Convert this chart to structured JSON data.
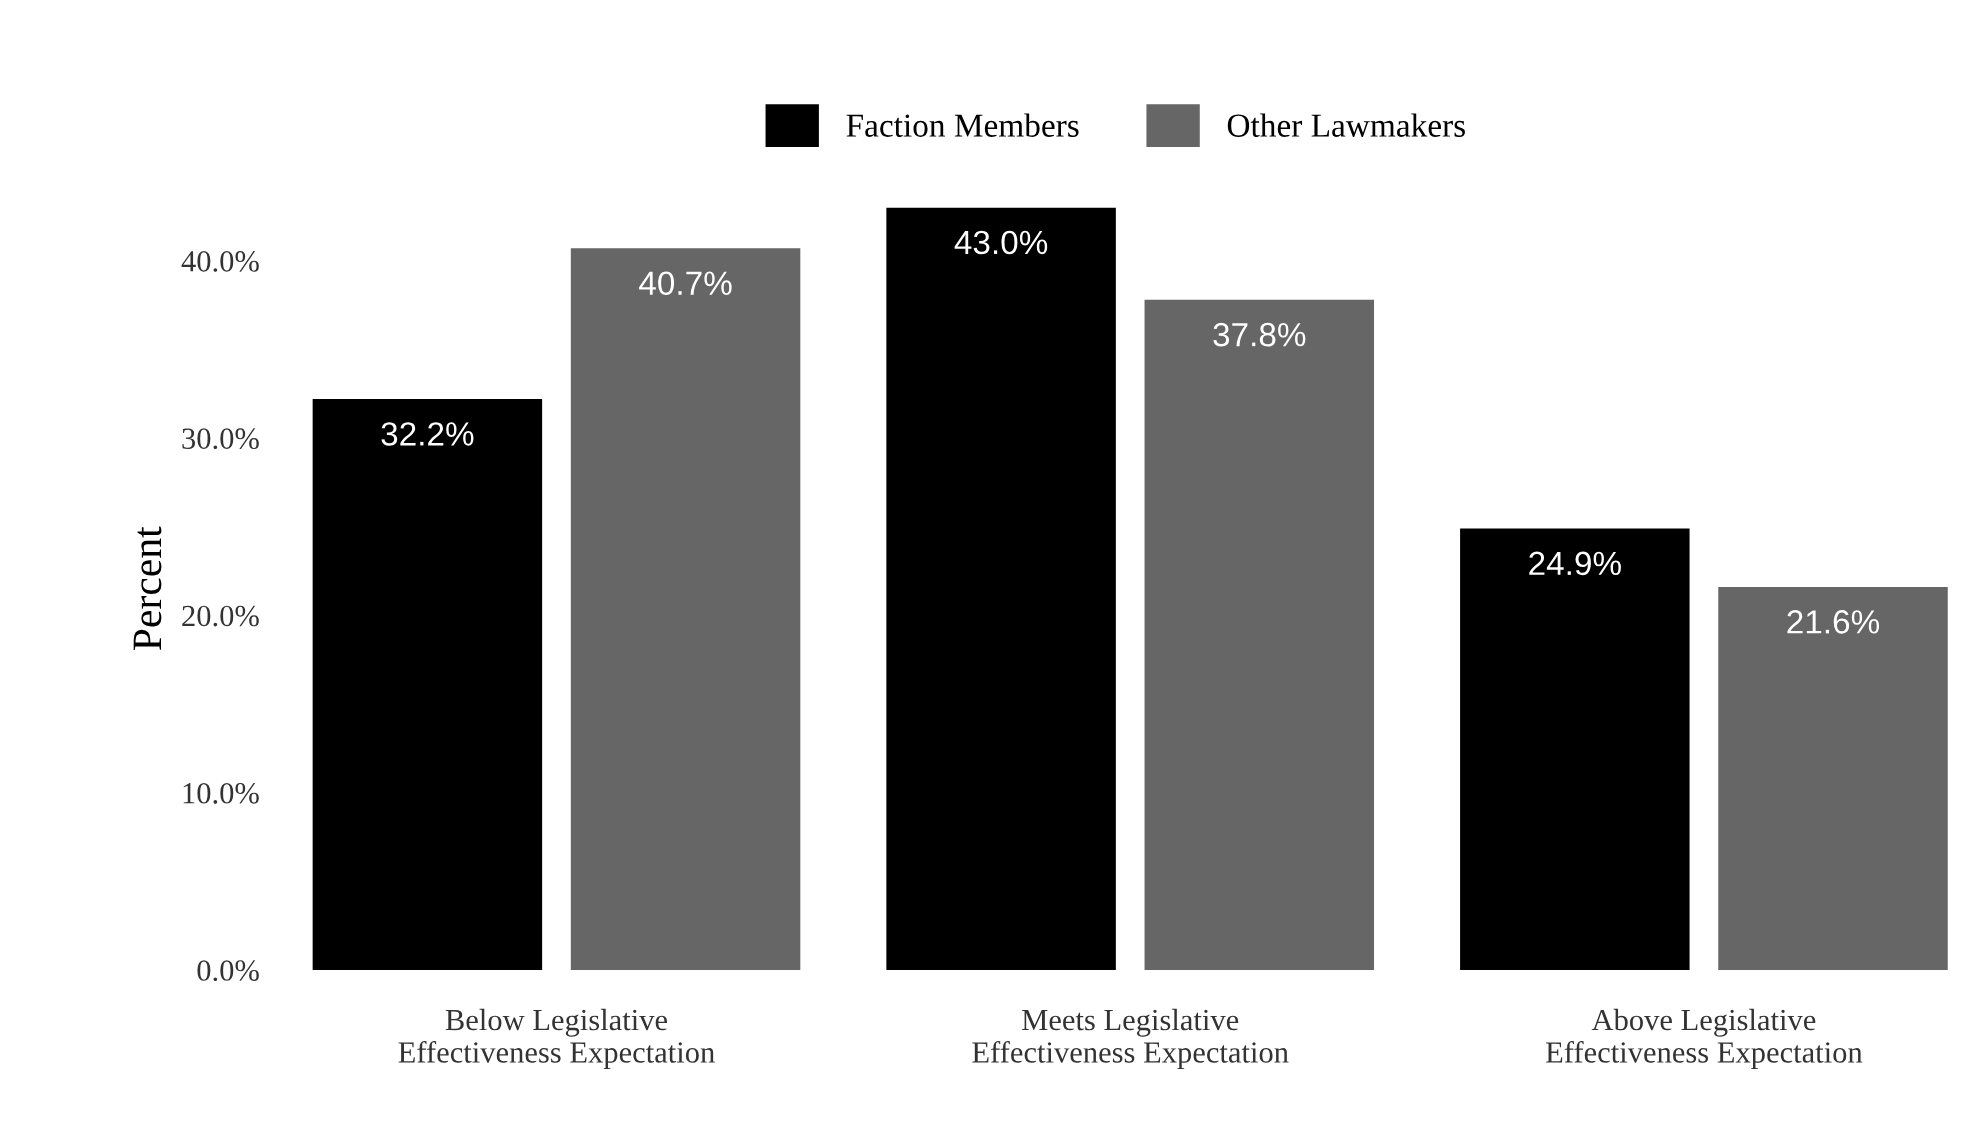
{
  "chart_data": {
    "type": "bar",
    "ylabel": "Percent",
    "categories": [
      "Below Legislative\nEffectiveness Expectation",
      "Meets Legislative\nEffectiveness Expectation",
      "Above Legislative\nEffectiveness Expectation"
    ],
    "series": [
      {
        "name": "Faction Members",
        "color": "#000000",
        "values": [
          32.2,
          43.0,
          24.9
        ],
        "value_labels": [
          "32.2%",
          "43.0%",
          "24.9%"
        ]
      },
      {
        "name": "Other Lawmakers",
        "color": "#666666",
        "values": [
          40.7,
          37.8,
          21.6
        ],
        "value_labels": [
          "40.7%",
          "37.8%",
          "21.6%"
        ]
      }
    ],
    "yticks": [
      {
        "value": 0,
        "label": "0.0%"
      },
      {
        "value": 10,
        "label": "10.0%"
      },
      {
        "value": 20,
        "label": "20.0%"
      },
      {
        "value": 30,
        "label": "30.0%"
      },
      {
        "value": 40,
        "label": "40.0%"
      }
    ],
    "ylim": [
      0,
      43.0
    ],
    "grid": false,
    "legend": "top"
  }
}
